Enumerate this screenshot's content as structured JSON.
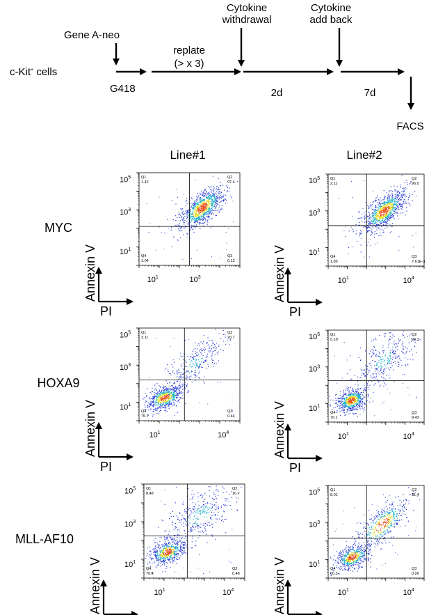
{
  "schematic": {
    "start": "c-Kit",
    "start_sup": "+",
    "start_suffix": " cells",
    "gene": "Gene A-neo",
    "selection": "G418",
    "replate_1": "replate",
    "replate_2": "(> x 3)",
    "withdrawal_1": "Cytokine",
    "withdrawal_2": "withdrawal",
    "withdrawal_time": "2d",
    "addback_1": "Cytokine",
    "addback_2": "add back",
    "addback_time": "7d",
    "readout": "FACS"
  },
  "columns": [
    "Line#1",
    "Line#2"
  ],
  "rows": [
    "MYC",
    "HOXA9",
    "MLL-AF10"
  ],
  "axes": {
    "y_label": "Annexin V",
    "x_label": "PI"
  },
  "panels": [
    {
      "y_ticks": [
        "1",
        "3",
        "5"
      ],
      "x_ticks": [
        "1",
        "3"
      ],
      "q1": "1.42",
      "q2": "97.4",
      "q3": "0.12",
      "q4": "1.04"
    },
    {
      "y_ticks": [
        "1",
        "3",
        "5"
      ],
      "x_ticks": [
        "1",
        "4"
      ],
      "q1": "2.11",
      "q2": "96.0",
      "q3": "7.61E-3",
      "q4": "1.85"
    },
    {
      "y_ticks": [
        "1",
        "3",
        "5"
      ],
      "x_ticks": [
        "1",
        "4"
      ],
      "q1": "3.11",
      "q2": "20.7",
      "q3": "0.44",
      "q4": "75.7"
    },
    {
      "y_ticks": [
        "1",
        "3",
        "5"
      ],
      "x_ticks": [
        "1",
        "4"
      ],
      "q1": "5.10",
      "q2": "24.3",
      "q3": "0.43",
      "q4": "70.1"
    },
    {
      "y_ticks": [
        "1",
        "3",
        "5"
      ],
      "x_ticks": [
        "1",
        "4"
      ],
      "q1": "8.48",
      "q2": "16.7",
      "q3": "0.48",
      "q4": "70.4"
    },
    {
      "y_ticks": [
        "1",
        "3",
        "5"
      ],
      "x_ticks": [
        "1",
        "4"
      ],
      "q1": "8.01",
      "q2": "31.4",
      "q3": "0.26",
      "q4": "60.3"
    }
  ],
  "quadrant_names": [
    "Q1",
    "Q2",
    "Q3",
    "Q4"
  ],
  "colors": {
    "ink": "#000000",
    "dot_low": "#2a3fd6",
    "dot_mid": "#18b0c8",
    "dot_high": "#e8dc20",
    "dot_peak": "#e84a18"
  }
}
